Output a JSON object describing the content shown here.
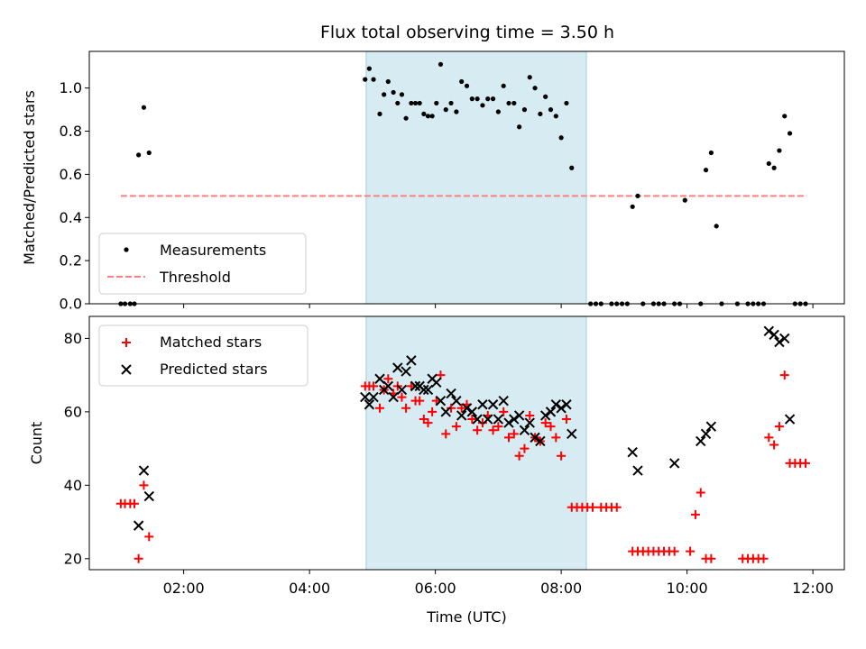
{
  "title": "Flux total observing time = 3.50 h",
  "chart_data": [
    {
      "type": "scatter",
      "ylabel": "Matched/Predicted stars",
      "xlabel": "",
      "xlim": [
        "00:30",
        "12:30"
      ],
      "ylim": [
        0,
        1.17
      ],
      "yticks": [
        0.0,
        0.2,
        0.4,
        0.6,
        0.8,
        1.0
      ],
      "ytick_labels": [
        "0.0",
        "0.2",
        "0.4",
        "0.6",
        "0.8",
        "1.0"
      ],
      "shaded_span": [
        "04:54",
        "08:24"
      ],
      "legend_position": "lower-left",
      "threshold": {
        "name": "Threshold",
        "value": 0.5,
        "x_range": [
          "01:00",
          "11:54"
        ],
        "color": "#ff7f7f"
      },
      "series": [
        {
          "name": "Measurements",
          "color": "#000000",
          "marker": "dot",
          "points": [
            [
              "01:00",
              0
            ],
            [
              "01:04",
              0
            ],
            [
              "01:09",
              0
            ],
            [
              "01:13",
              0
            ],
            [
              "01:17",
              0.69
            ],
            [
              "01:22",
              0.91
            ],
            [
              "01:27",
              0.7
            ],
            [
              "04:53",
              1.04
            ],
            [
              "04:57",
              1.09
            ],
            [
              "05:01",
              1.04
            ],
            [
              "05:07",
              0.88
            ],
            [
              "05:11",
              0.97
            ],
            [
              "05:15",
              1.03
            ],
            [
              "05:20",
              0.98
            ],
            [
              "05:24",
              0.93
            ],
            [
              "05:28",
              0.97
            ],
            [
              "05:32",
              0.86
            ],
            [
              "05:37",
              0.93
            ],
            [
              "05:41",
              0.93
            ],
            [
              "05:45",
              0.93
            ],
            [
              "05:49",
              0.88
            ],
            [
              "05:53",
              0.87
            ],
            [
              "05:57",
              0.87
            ],
            [
              "06:01",
              0.93
            ],
            [
              "06:05",
              1.11
            ],
            [
              "06:10",
              0.9
            ],
            [
              "06:15",
              0.93
            ],
            [
              "06:20",
              0.89
            ],
            [
              "06:25",
              1.03
            ],
            [
              "06:30",
              1.01
            ],
            [
              "06:35",
              0.95
            ],
            [
              "06:40",
              0.95
            ],
            [
              "06:45",
              0.92
            ],
            [
              "06:50",
              0.95
            ],
            [
              "06:55",
              0.95
            ],
            [
              "07:00",
              0.89
            ],
            [
              "07:05",
              1.01
            ],
            [
              "07:10",
              0.93
            ],
            [
              "07:15",
              0.93
            ],
            [
              "07:20",
              0.82
            ],
            [
              "07:25",
              0.9
            ],
            [
              "07:30",
              1.05
            ],
            [
              "07:35",
              1.0
            ],
            [
              "07:40",
              0.88
            ],
            [
              "07:45",
              0.96
            ],
            [
              "07:50",
              0.9
            ],
            [
              "07:55",
              0.87
            ],
            [
              "08:00",
              0.77
            ],
            [
              "08:05",
              0.93
            ],
            [
              "08:10",
              0.63
            ],
            [
              "08:28",
              0
            ],
            [
              "08:33",
              0
            ],
            [
              "08:38",
              0
            ],
            [
              "08:48",
              0
            ],
            [
              "08:53",
              0
            ],
            [
              "08:58",
              0
            ],
            [
              "09:03",
              0
            ],
            [
              "09:08",
              0.45
            ],
            [
              "09:13",
              0.5
            ],
            [
              "09:18",
              0
            ],
            [
              "09:28",
              0
            ],
            [
              "09:33",
              0
            ],
            [
              "09:38",
              0
            ],
            [
              "09:48",
              0
            ],
            [
              "09:53",
              0
            ],
            [
              "09:58",
              0.48
            ],
            [
              "10:13",
              0
            ],
            [
              "10:18",
              0.62
            ],
            [
              "10:23",
              0.7
            ],
            [
              "10:28",
              0.36
            ],
            [
              "10:33",
              0
            ],
            [
              "10:48",
              0
            ],
            [
              "10:58",
              0
            ],
            [
              "11:03",
              0
            ],
            [
              "11:08",
              0
            ],
            [
              "11:13",
              0
            ],
            [
              "11:18",
              0.65
            ],
            [
              "11:23",
              0.63
            ],
            [
              "11:28",
              0.71
            ],
            [
              "11:33",
              0.87
            ],
            [
              "11:38",
              0.79
            ],
            [
              "11:43",
              0
            ],
            [
              "11:48",
              0
            ],
            [
              "11:53",
              0
            ]
          ]
        }
      ]
    },
    {
      "type": "scatter",
      "ylabel": "Count",
      "xlabel": "Time (UTC)",
      "xlim": [
        "00:30",
        "12:30"
      ],
      "ylim": [
        17,
        86
      ],
      "yticks": [
        20,
        40,
        60,
        80
      ],
      "ytick_labels": [
        "20",
        "40",
        "60",
        "80"
      ],
      "xticks": [
        "02:00",
        "04:00",
        "06:00",
        "08:00",
        "10:00",
        "12:00"
      ],
      "shaded_span": [
        "04:54",
        "08:24"
      ],
      "legend_position": "upper-left",
      "series": [
        {
          "name": "Matched stars",
          "color": "#ff0000",
          "marker": "plus",
          "points": [
            [
              "01:00",
              35
            ],
            [
              "01:04",
              35
            ],
            [
              "01:09",
              35
            ],
            [
              "01:13",
              35
            ],
            [
              "01:17",
              20
            ],
            [
              "01:22",
              40
            ],
            [
              "01:27",
              26
            ],
            [
              "04:53",
              67
            ],
            [
              "04:57",
              67
            ],
            [
              "05:01",
              67
            ],
            [
              "05:07",
              61
            ],
            [
              "05:11",
              66
            ],
            [
              "05:15",
              69
            ],
            [
              "05:20",
              65
            ],
            [
              "05:24",
              67
            ],
            [
              "05:28",
              64
            ],
            [
              "05:32",
              61
            ],
            [
              "05:37",
              67
            ],
            [
              "05:41",
              63
            ],
            [
              "05:45",
              63
            ],
            [
              "05:49",
              58
            ],
            [
              "05:53",
              57
            ],
            [
              "05:57",
              60
            ],
            [
              "06:01",
              63
            ],
            [
              "06:05",
              70
            ],
            [
              "06:10",
              54
            ],
            [
              "06:15",
              61
            ],
            [
              "06:20",
              56
            ],
            [
              "06:25",
              61
            ],
            [
              "06:30",
              62
            ],
            [
              "06:35",
              58
            ],
            [
              "06:40",
              55
            ],
            [
              "06:45",
              57
            ],
            [
              "06:50",
              59
            ],
            [
              "06:55",
              55
            ],
            [
              "07:00",
              56
            ],
            [
              "07:05",
              60
            ],
            [
              "07:10",
              53
            ],
            [
              "07:15",
              54
            ],
            [
              "07:20",
              48
            ],
            [
              "07:25",
              50
            ],
            [
              "07:30",
              59
            ],
            [
              "07:35",
              53
            ],
            [
              "07:40",
              52
            ],
            [
              "07:45",
              57
            ],
            [
              "07:50",
              56
            ],
            [
              "07:55",
              53
            ],
            [
              "08:00",
              48
            ],
            [
              "08:05",
              58
            ],
            [
              "08:10",
              34
            ],
            [
              "08:15",
              34
            ],
            [
              "08:20",
              34
            ],
            [
              "08:25",
              34
            ],
            [
              "08:30",
              34
            ],
            [
              "08:38",
              34
            ],
            [
              "08:43",
              34
            ],
            [
              "08:48",
              34
            ],
            [
              "08:53",
              34
            ],
            [
              "09:08",
              22
            ],
            [
              "09:13",
              22
            ],
            [
              "09:18",
              22
            ],
            [
              "09:23",
              22
            ],
            [
              "09:28",
              22
            ],
            [
              "09:33",
              22
            ],
            [
              "09:38",
              22
            ],
            [
              "09:43",
              22
            ],
            [
              "09:48",
              22
            ],
            [
              "10:03",
              22
            ],
            [
              "10:08",
              32
            ],
            [
              "10:13",
              38
            ],
            [
              "10:18",
              20
            ],
            [
              "10:23",
              20
            ],
            [
              "10:53",
              20
            ],
            [
              "10:58",
              20
            ],
            [
              "11:03",
              20
            ],
            [
              "11:08",
              20
            ],
            [
              "11:13",
              20
            ],
            [
              "11:18",
              53
            ],
            [
              "11:23",
              51
            ],
            [
              "11:28",
              56
            ],
            [
              "11:33",
              70
            ],
            [
              "11:38",
              46
            ],
            [
              "11:43",
              46
            ],
            [
              "11:48",
              46
            ],
            [
              "11:53",
              46
            ]
          ]
        },
        {
          "name": "Predicted stars",
          "color": "#000000",
          "marker": "x",
          "points": [
            [
              "01:17",
              29
            ],
            [
              "01:22",
              44
            ],
            [
              "01:27",
              37
            ],
            [
              "04:53",
              64
            ],
            [
              "04:57",
              62
            ],
            [
              "05:01",
              64
            ],
            [
              "05:07",
              69
            ],
            [
              "05:11",
              66
            ],
            [
              "05:15",
              67
            ],
            [
              "05:20",
              64
            ],
            [
              "05:24",
              72
            ],
            [
              "05:28",
              66
            ],
            [
              "05:32",
              71
            ],
            [
              "05:37",
              74
            ],
            [
              "05:41",
              67
            ],
            [
              "05:45",
              67
            ],
            [
              "05:49",
              66
            ],
            [
              "05:53",
              66
            ],
            [
              "05:57",
              69
            ],
            [
              "06:01",
              68
            ],
            [
              "06:05",
              63
            ],
            [
              "06:10",
              60
            ],
            [
              "06:15",
              65
            ],
            [
              "06:20",
              63
            ],
            [
              "06:25",
              59
            ],
            [
              "06:30",
              61
            ],
            [
              "06:35",
              60
            ],
            [
              "06:40",
              58
            ],
            [
              "06:45",
              62
            ],
            [
              "06:50",
              58
            ],
            [
              "06:55",
              62
            ],
            [
              "07:00",
              58
            ],
            [
              "07:05",
              63
            ],
            [
              "07:10",
              57
            ],
            [
              "07:15",
              58
            ],
            [
              "07:20",
              59
            ],
            [
              "07:25",
              55
            ],
            [
              "07:30",
              57
            ],
            [
              "07:35",
              53
            ],
            [
              "07:40",
              52
            ],
            [
              "07:45",
              59
            ],
            [
              "07:50",
              60
            ],
            [
              "07:55",
              62
            ],
            [
              "08:00",
              61
            ],
            [
              "08:05",
              62
            ],
            [
              "08:10",
              54
            ],
            [
              "09:08",
              49
            ],
            [
              "09:13",
              44
            ],
            [
              "09:48",
              46
            ],
            [
              "10:13",
              52
            ],
            [
              "10:18",
              54
            ],
            [
              "10:23",
              56
            ],
            [
              "11:18",
              82
            ],
            [
              "11:23",
              81
            ],
            [
              "11:28",
              79
            ],
            [
              "11:33",
              80
            ],
            [
              "11:38",
              58
            ]
          ]
        }
      ]
    }
  ]
}
